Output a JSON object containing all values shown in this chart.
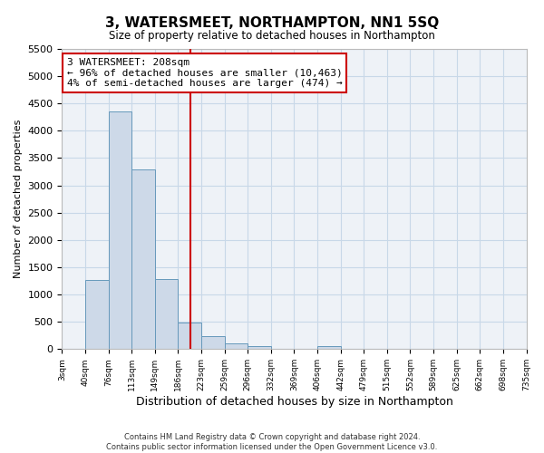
{
  "title": "3, WATERSMEET, NORTHAMPTON, NN1 5SQ",
  "subtitle": "Size of property relative to detached houses in Northampton",
  "xlabel": "Distribution of detached houses by size in Northampton",
  "ylabel": "Number of detached properties",
  "bin_edges": [
    3,
    40,
    77,
    114,
    151,
    188,
    225,
    262,
    299,
    336,
    373,
    410,
    447,
    484,
    521,
    558,
    595,
    632,
    669,
    706,
    743
  ],
  "bin_labels": [
    "3sqm",
    "40sqm",
    "76sqm",
    "113sqm",
    "149sqm",
    "186sqm",
    "223sqm",
    "259sqm",
    "296sqm",
    "332sqm",
    "369sqm",
    "406sqm",
    "442sqm",
    "479sqm",
    "515sqm",
    "552sqm",
    "589sqm",
    "625sqm",
    "662sqm",
    "698sqm",
    "735sqm"
  ],
  "counts": [
    0,
    1260,
    4350,
    3300,
    1280,
    490,
    230,
    100,
    50,
    0,
    0,
    50,
    0,
    0,
    0,
    0,
    0,
    0,
    0,
    0
  ],
  "bar_facecolor": "#cdd9e8",
  "bar_edgecolor": "#6699bb",
  "vline_x": 208,
  "vline_color": "#cc0000",
  "vline_lw": 1.5,
  "annotation_line1": "3 WATERSMEET: 208sqm",
  "annotation_line2": "← 96% of detached houses are smaller (10,463)",
  "annotation_line3": "4% of semi-detached houses are larger (474) →",
  "annotation_box_edgecolor": "#cc0000",
  "annotation_box_facecolor": "white",
  "ylim": [
    0,
    5500
  ],
  "yticks": [
    0,
    500,
    1000,
    1500,
    2000,
    2500,
    3000,
    3500,
    4000,
    4500,
    5000,
    5500
  ],
  "grid_color": "#c8d8e8",
  "bg_color": "#eef2f7",
  "footer_line1": "Contains HM Land Registry data © Crown copyright and database right 2024.",
  "footer_line2": "Contains public sector information licensed under the Open Government Licence v3.0."
}
